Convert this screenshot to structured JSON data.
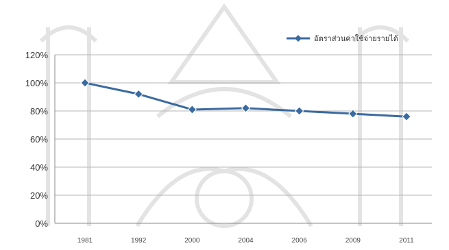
{
  "chart_data": {
    "type": "line",
    "categories": [
      "1981",
      "1992",
      "2000",
      "2004",
      "2006",
      "2009",
      "2011"
    ],
    "series": [
      {
        "name": "อัตราส่วนค่าใช้จ่ายรายได้",
        "values": [
          100,
          92,
          81,
          82,
          80,
          78,
          76
        ],
        "color": "#3a6aa0"
      }
    ],
    "y_unit": "%",
    "ylim": [
      0,
      120
    ],
    "y_ticks": [
      0,
      20,
      40,
      60,
      80,
      100,
      120
    ],
    "y_tick_labels": [
      "0%",
      "20%",
      "40%",
      "60%",
      "80%",
      "100%",
      "120%"
    ],
    "grid": true,
    "legend_position": "top-right",
    "watermark": "decorative seal / emblem (light gray, behind chart)"
  }
}
